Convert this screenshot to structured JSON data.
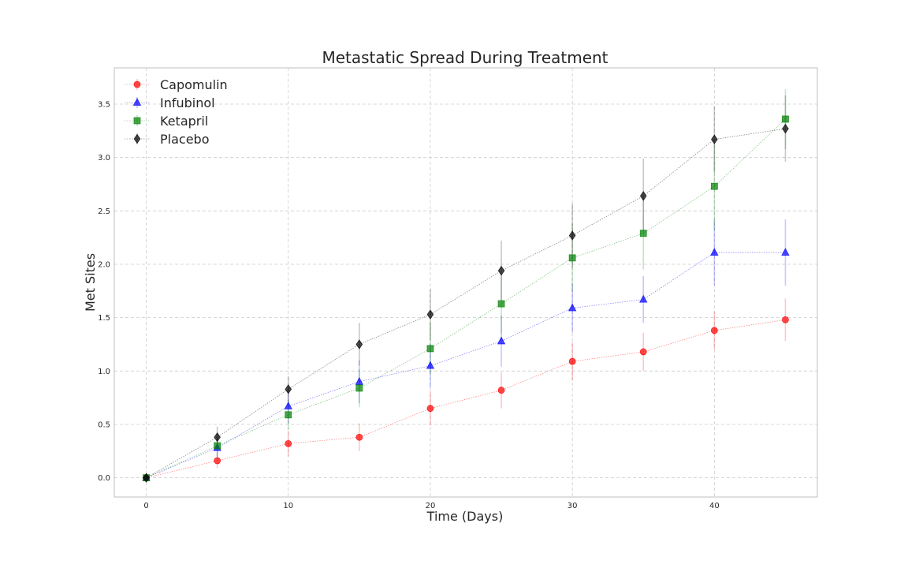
{
  "chart_data": {
    "type": "line",
    "title": "Metastatic Spread During Treatment",
    "xlabel": "Time (Days)",
    "ylabel": "Met Sites",
    "xlim": [
      -2.25,
      47.25
    ],
    "ylim": [
      -0.18,
      3.84
    ],
    "xticks": [
      0,
      10,
      20,
      30,
      40
    ],
    "yticks": [
      0.0,
      0.5,
      1.0,
      1.5,
      2.0,
      2.5,
      3.0,
      3.5
    ],
    "grid": true,
    "legend_position": "top-left",
    "x": [
      0,
      5,
      10,
      15,
      20,
      25,
      30,
      35,
      40,
      45
    ],
    "series": [
      {
        "name": "Capomulin",
        "color": "#ff0000",
        "marker": "circle",
        "values": [
          0.0,
          0.16,
          0.32,
          0.38,
          0.65,
          0.82,
          1.09,
          1.18,
          1.38,
          1.48
        ],
        "errors": [
          0.0,
          0.07,
          0.12,
          0.13,
          0.16,
          0.17,
          0.18,
          0.18,
          0.18,
          0.2
        ]
      },
      {
        "name": "Infubinol",
        "color": "#0000ff",
        "marker": "triangle",
        "values": [
          0.0,
          0.28,
          0.67,
          0.9,
          1.05,
          1.28,
          1.59,
          1.67,
          2.11,
          2.11
        ],
        "errors": [
          0.0,
          0.09,
          0.16,
          0.2,
          0.21,
          0.24,
          0.23,
          0.22,
          0.31,
          0.31
        ]
      },
      {
        "name": "Ketapril",
        "color": "#008000",
        "marker": "square",
        "values": [
          0.0,
          0.3,
          0.59,
          0.84,
          1.21,
          1.63,
          2.06,
          2.29,
          2.73,
          3.36
        ],
        "errors": [
          0.0,
          0.1,
          0.14,
          0.18,
          0.24,
          0.28,
          0.32,
          0.34,
          0.41,
          0.28
        ]
      },
      {
        "name": "Placebo",
        "color": "#000000",
        "marker": "diamond",
        "values": [
          0.0,
          0.38,
          0.83,
          1.25,
          1.53,
          1.94,
          2.27,
          2.64,
          3.17,
          3.27
        ],
        "errors": [
          0.0,
          0.1,
          0.12,
          0.2,
          0.24,
          0.28,
          0.3,
          0.35,
          0.31,
          0.31
        ]
      }
    ]
  }
}
